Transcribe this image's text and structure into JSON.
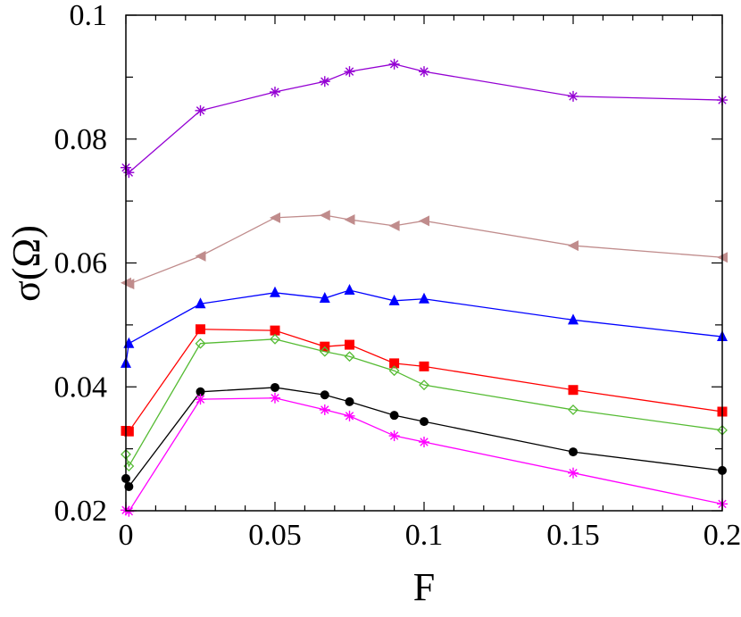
{
  "chart_data": {
    "type": "line",
    "title": "",
    "xlabel": "F",
    "ylabel": "σ(Ω)",
    "xlim": [
      0,
      0.2
    ],
    "ylim": [
      0.02,
      0.1
    ],
    "x_ticks": [
      0,
      0.05,
      0.1,
      0.15,
      0.2
    ],
    "x_tick_labels": [
      "0",
      "0.05",
      "0.1",
      "0.15",
      "0.2"
    ],
    "y_ticks": [
      0.02,
      0.04,
      0.06,
      0.08,
      0.1
    ],
    "y_tick_labels": [
      "0.02",
      "0.04",
      "0.06",
      "0.08",
      "0.1"
    ],
    "grid": false,
    "legend": null,
    "x": [
      0,
      0.001,
      0.025,
      0.05,
      0.0667,
      0.075,
      0.09,
      0.1,
      0.15,
      0.2
    ],
    "series": [
      {
        "name": "purple-star",
        "color": "#9400d3",
        "marker": "star",
        "values": [
          0.0754,
          0.0746,
          0.0846,
          0.0876,
          0.0893,
          0.0909,
          0.0921,
          0.0909,
          0.0869,
          0.0863
        ]
      },
      {
        "name": "brown-triangle-left",
        "color": "#c08c8c",
        "marker": "triangle-left",
        "values": [
          0.0568,
          0.0566,
          0.0611,
          0.0673,
          0.0677,
          0.067,
          0.066,
          0.0668,
          0.0628,
          0.0609
        ]
      },
      {
        "name": "blue-triangle-up",
        "color": "#0000ff",
        "marker": "triangle-up",
        "values": [
          0.0438,
          0.047,
          0.0534,
          0.0552,
          0.0543,
          0.0556,
          0.0539,
          0.0542,
          0.0508,
          0.0481
        ]
      },
      {
        "name": "red-square",
        "color": "#ff0000",
        "marker": "square",
        "values": [
          0.0329,
          0.0328,
          0.0493,
          0.0491,
          0.0465,
          0.0468,
          0.0438,
          0.0433,
          0.0395,
          0.036
        ]
      },
      {
        "name": "green-diamond",
        "color": "#55bb33",
        "marker": "diamond-open",
        "values": [
          0.0291,
          0.0272,
          0.047,
          0.0477,
          0.0457,
          0.0449,
          0.0426,
          0.0403,
          0.0363,
          0.033
        ]
      },
      {
        "name": "black-circle",
        "color": "#000000",
        "marker": "circle",
        "values": [
          0.0252,
          0.0239,
          0.0392,
          0.0399,
          0.0387,
          0.0376,
          0.0354,
          0.0344,
          0.0295,
          0.0265
        ]
      },
      {
        "name": "magenta-star",
        "color": "#ff00ff",
        "marker": "star",
        "values": [
          0.0201,
          0.0199,
          0.038,
          0.0382,
          0.0363,
          0.0353,
          0.0321,
          0.0311,
          0.0261,
          0.0211
        ]
      }
    ]
  }
}
